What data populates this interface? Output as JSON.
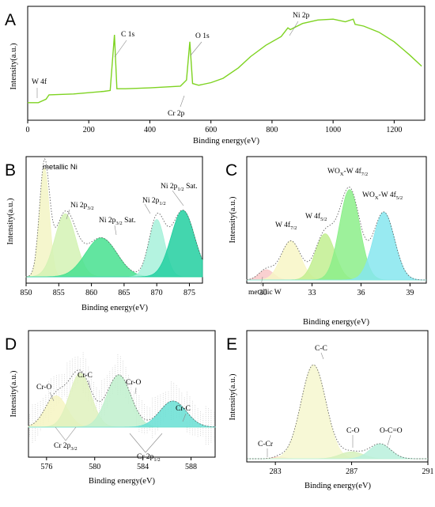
{
  "figure": {
    "panels": [
      {
        "id": "A",
        "xlabel": "Binding energy(eV)",
        "ylabel": "Intensity(a.u.)",
        "xlim": [
          0,
          1300
        ],
        "xticks": [
          "0",
          "200",
          "400",
          "600",
          "800",
          "1000",
          "1200"
        ],
        "annotations": [
          "W 4f",
          "C 1s",
          "O 1s",
          "Cr 2p",
          "Ni 2p"
        ]
      },
      {
        "id": "B",
        "xlabel": "Binding energy(eV)",
        "ylabel": "Intensity(a.u.)",
        "xlim": [
          850,
          877
        ],
        "xticks": [
          "850",
          "855",
          "860",
          "865",
          "870",
          "875"
        ],
        "annotations": [
          "metallic Ni",
          "Ni 2p3/2",
          "Ni 2p3/2 Sat.",
          "Ni 2p1/2",
          "Ni 2p1/2 Sat."
        ]
      },
      {
        "id": "C",
        "xlabel": "Binding energy(eV)",
        "ylabel": "Intensity(a.u.)",
        "xlim": [
          29.0,
          40.0
        ],
        "xticks": [
          "30",
          "33",
          "36",
          "39"
        ],
        "annotations": [
          "metallic W",
          "W 4f7/2",
          "W 4f5/2",
          "WOx-W 4f7/2",
          "WOx-W 4f5/2"
        ]
      },
      {
        "id": "D",
        "xlabel": "Binding energy(eV)",
        "ylabel": "Intensity(a.u.)",
        "xlim": [
          574.5,
          590
        ],
        "xticks": [
          "576",
          "580",
          "584",
          "588"
        ],
        "annotations": [
          "Cr-O",
          "Cr-C",
          "Cr-O",
          "Cr-C",
          "Cr 2p3/2",
          "Cr 2p1/2"
        ]
      },
      {
        "id": "E",
        "xlabel": "Binding energy(eV)",
        "ylabel": "Intensity(a.u.)",
        "xlim": [
          281.5,
          291
        ],
        "xticks": [
          "283",
          "287",
          "291"
        ],
        "annotations": [
          "C-Cr",
          "C-C",
          "C-O",
          "O-C=O"
        ]
      }
    ]
  },
  "chart_data": [
    {
      "type": "line",
      "panel": "A",
      "xlabel": "Binding energy(eV)",
      "ylabel": "Intensity(a.u.)",
      "xlim": [
        0,
        1300
      ],
      "color": "#7ed321",
      "series": [
        {
          "x": [
            0,
            35,
            60,
            70,
            150,
            250,
            270,
            284,
            292,
            320,
            400,
            500,
            520,
            531,
            540,
            560,
            600,
            640,
            690,
            730,
            780,
            830,
            852,
            860,
            900,
            950,
            1000,
            1040,
            1066,
            1072,
            1100,
            1150,
            1200,
            1250,
            1290
          ],
          "y": [
            0.02,
            0.02,
            0.06,
            0.11,
            0.12,
            0.15,
            0.16,
            0.8,
            0.18,
            0.18,
            0.19,
            0.21,
            0.28,
            0.72,
            0.24,
            0.22,
            0.25,
            0.3,
            0.42,
            0.55,
            0.68,
            0.78,
            0.88,
            0.86,
            0.93,
            0.97,
            0.98,
            0.95,
            0.98,
            0.92,
            0.9,
            0.83,
            0.72,
            0.57,
            0.44
          ]
        }
      ]
    },
    {
      "type": "area",
      "panel": "B",
      "xlabel": "Binding energy(eV)",
      "ylabel": "Intensity(a.u.)",
      "xlim": [
        850,
        877
      ],
      "series": [
        {
          "name": "metallic Ni",
          "center": 852.8,
          "height": 0.95,
          "width": 0.75,
          "color": "#f3f5c4"
        },
        {
          "name": "Ni 2p3/2",
          "center": 856.0,
          "height": 0.55,
          "width": 1.6,
          "color": "#d3f2b4"
        },
        {
          "name": "Ni 2p3/2 Sat.",
          "center": 861.5,
          "height": 0.34,
          "width": 2.4,
          "color": "#47e18f"
        },
        {
          "name": "Ni 2p1/2",
          "center": 870.0,
          "height": 0.5,
          "width": 1.2,
          "color": "#a7f1db"
        },
        {
          "name": "Ni 2p1/2 Sat.",
          "center": 874.0,
          "height": 0.58,
          "width": 1.8,
          "color": "#22cfa0"
        }
      ]
    },
    {
      "type": "area",
      "panel": "C",
      "xlabel": "Binding energy(eV)",
      "ylabel": "Intensity(a.u.)",
      "xlim": [
        29.0,
        40.0
      ],
      "series": [
        {
          "name": "metallic W",
          "center": 30.2,
          "height": 0.1,
          "width": 0.45,
          "color": "#f8c8c8"
        },
        {
          "name": "W 4f7/2",
          "center": 31.7,
          "height": 0.38,
          "width": 0.6,
          "color": "#f8f6c6"
        },
        {
          "name": "W 4f5/2",
          "center": 33.8,
          "height": 0.45,
          "width": 0.6,
          "color": "#c2ee90"
        },
        {
          "name": "WOx-W 4f7/2",
          "center": 35.3,
          "height": 0.88,
          "width": 0.62,
          "color": "#8cef8a"
        },
        {
          "name": "WOx-W 4f5/2",
          "center": 37.4,
          "height": 0.66,
          "width": 0.65,
          "color": "#86e6ee"
        }
      ]
    },
    {
      "type": "area",
      "panel": "D",
      "xlabel": "Binding energy(eV)",
      "ylabel": "Intensity(a.u.)",
      "xlim": [
        574.5,
        590
      ],
      "series": [
        {
          "name": "Cr-O",
          "center": 576.8,
          "height": 0.36,
          "width": 0.9,
          "color": "#f6f4c2"
        },
        {
          "name": "Cr-C",
          "center": 578.8,
          "height": 0.62,
          "width": 0.9,
          "color": "#dff1bd"
        },
        {
          "name": "Cr-O",
          "center": 582.0,
          "height": 0.6,
          "width": 1.0,
          "color": "#bff0cd"
        },
        {
          "name": "Cr-C",
          "center": 586.5,
          "height": 0.3,
          "width": 1.1,
          "color": "#67dfd4"
        }
      ]
    },
    {
      "type": "area",
      "panel": "E",
      "xlabel": "Binding energy(eV)",
      "ylabel": "Intensity(a.u.)",
      "xlim": [
        281.5,
        291
      ],
      "series": [
        {
          "name": "C-Cr",
          "center": 283.2,
          "height": 0.02,
          "width": 0.3,
          "color": "#f8c3b8"
        },
        {
          "name": "C-C",
          "center": 285.0,
          "height": 0.95,
          "width": 0.65,
          "color": "#f6f7cf"
        },
        {
          "name": "C-O",
          "center": 287.0,
          "height": 0.07,
          "width": 0.6,
          "color": "#d6f1bc"
        },
        {
          "name": "O-C=O",
          "center": 288.5,
          "height": 0.15,
          "width": 0.55,
          "color": "#b8f0dc"
        }
      ]
    }
  ]
}
